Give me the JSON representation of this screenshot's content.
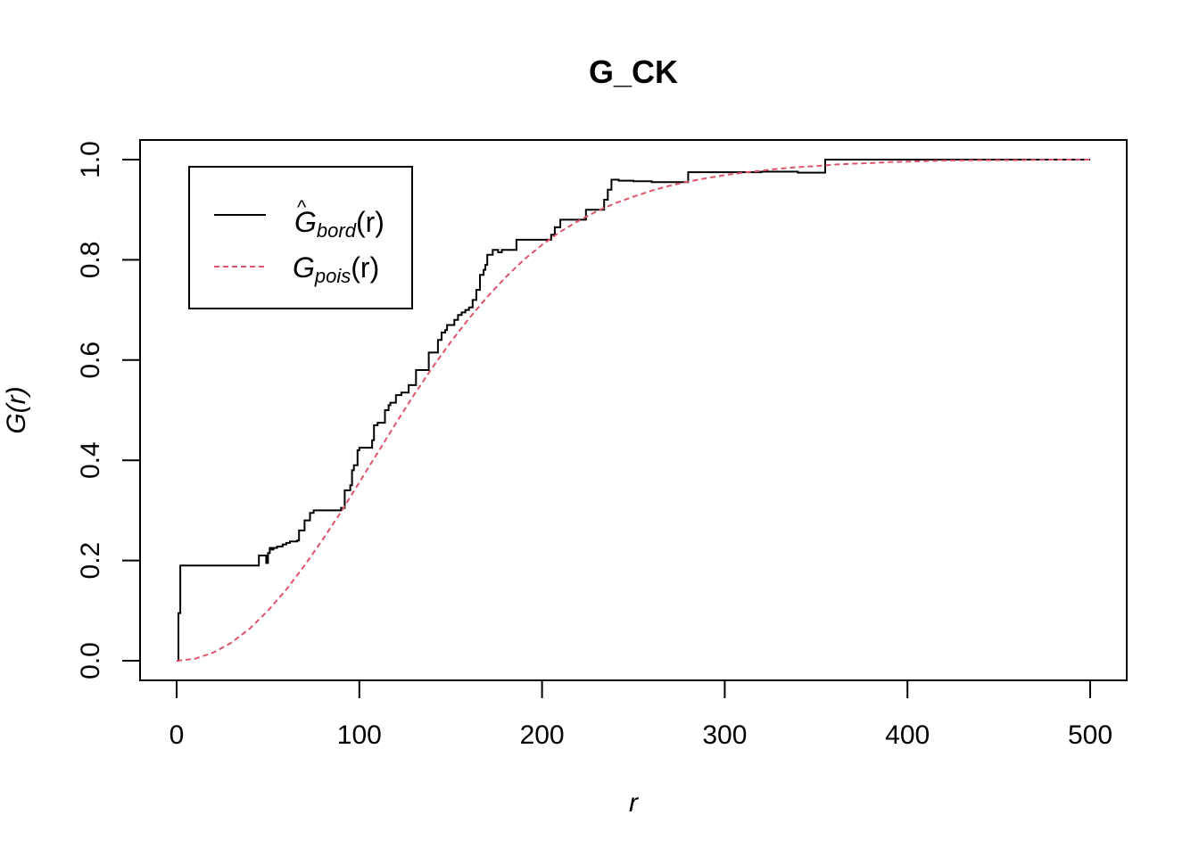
{
  "chart_data": {
    "type": "line",
    "title": "G_CK",
    "xlabel": "r",
    "ylabel": "G(r)",
    "xlim": [
      0,
      500
    ],
    "ylim": [
      0,
      1
    ],
    "xticks": [
      "0",
      "100",
      "200",
      "300",
      "400",
      "500"
    ],
    "yticks": [
      "0.0",
      "0.2",
      "0.4",
      "0.6",
      "0.8",
      "1.0"
    ],
    "grid": false,
    "legend_position": "top-left",
    "series": [
      {
        "name": "Ĝbord(r)",
        "legend_main": "G",
        "legend_hat": "^",
        "legend_sub": "bord",
        "legend_arg": "(r)",
        "color": "#000000",
        "style": "solid",
        "step": true,
        "x": [
          0,
          1,
          2,
          44,
          45,
          48,
          49,
          50,
          51,
          52,
          53,
          55,
          58,
          60,
          62,
          66,
          67,
          70,
          73,
          75,
          80,
          88,
          90,
          92,
          95,
          96,
          97,
          99,
          100,
          104,
          107,
          108,
          110,
          113,
          114,
          116,
          117,
          120,
          123,
          124,
          127,
          130,
          131,
          134,
          138,
          139,
          141,
          143,
          145,
          147,
          148,
          150,
          152,
          154,
          156,
          158,
          160,
          162,
          164,
          166,
          168,
          169,
          170,
          173,
          176,
          178,
          181,
          186,
          193,
          200,
          205,
          207,
          210,
          214,
          220,
          224,
          230,
          234,
          236,
          238,
          242,
          250,
          260,
          270,
          278,
          280,
          290,
          300,
          310,
          320,
          330,
          340,
          354,
          355,
          360,
          400,
          450,
          500
        ],
        "y": [
          0,
          0.095,
          0.19,
          0.19,
          0.21,
          0.21,
          0.195,
          0.215,
          0.225,
          0.222,
          0.225,
          0.228,
          0.232,
          0.235,
          0.238,
          0.24,
          0.26,
          0.28,
          0.295,
          0.3,
          0.3,
          0.3,
          0.305,
          0.34,
          0.35,
          0.38,
          0.39,
          0.42,
          0.425,
          0.425,
          0.44,
          0.47,
          0.475,
          0.475,
          0.5,
          0.51,
          0.515,
          0.53,
          0.535,
          0.535,
          0.55,
          0.55,
          0.58,
          0.58,
          0.615,
          0.615,
          0.615,
          0.64,
          0.655,
          0.66,
          0.67,
          0.67,
          0.68,
          0.69,
          0.695,
          0.7,
          0.705,
          0.72,
          0.74,
          0.77,
          0.78,
          0.79,
          0.81,
          0.82,
          0.815,
          0.82,
          0.82,
          0.84,
          0.84,
          0.84,
          0.85,
          0.865,
          0.88,
          0.88,
          0.88,
          0.9,
          0.9,
          0.92,
          0.94,
          0.96,
          0.958,
          0.957,
          0.955,
          0.955,
          0.955,
          0.975,
          0.975,
          0.975,
          0.975,
          0.976,
          0.976,
          0.974,
          0.974,
          1.0,
          1.0,
          1.0,
          1.0,
          1.0
        ]
      },
      {
        "name": "Gpois(r)",
        "legend_main": "G",
        "legend_sub": "pois",
        "legend_arg": "(r)",
        "color": "#DF536B",
        "style": "dashed",
        "step": false,
        "x": [
          0,
          10,
          20,
          30,
          40,
          50,
          60,
          70,
          80,
          90,
          100,
          110,
          120,
          130,
          140,
          150,
          160,
          170,
          180,
          190,
          200,
          210,
          220,
          230,
          240,
          250,
          260,
          270,
          280,
          290,
          300,
          310,
          320,
          330,
          340,
          350,
          360,
          370,
          380,
          390,
          400,
          420,
          440,
          460,
          480,
          500
        ],
        "y": [
          0.0,
          0.004,
          0.016,
          0.036,
          0.064,
          0.1,
          0.142,
          0.19,
          0.242,
          0.297,
          0.356,
          0.415,
          0.474,
          0.531,
          0.585,
          0.636,
          0.683,
          0.726,
          0.765,
          0.8,
          0.83,
          0.856,
          0.878,
          0.897,
          0.913,
          0.926,
          0.938,
          0.948,
          0.956,
          0.963,
          0.969,
          0.974,
          0.978,
          0.982,
          0.985,
          0.987,
          0.99,
          0.992,
          0.993,
          0.995,
          0.996,
          0.998,
          0.999,
          0.999,
          1.0,
          1.0
        ]
      }
    ]
  }
}
